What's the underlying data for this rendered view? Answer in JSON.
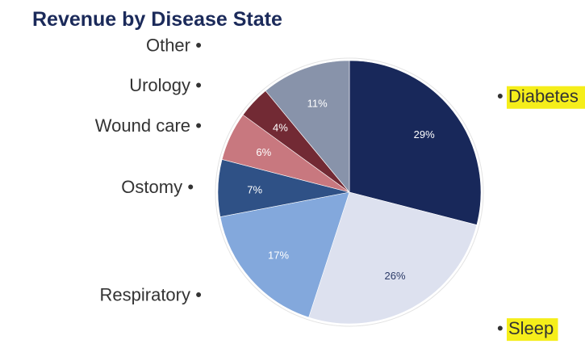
{
  "chart_data": {
    "type": "pie",
    "title": "Revenue by Disease State",
    "start_angle_deg": 0,
    "direction": "clockwise",
    "slices": [
      {
        "label": "Diabetes",
        "value": 29,
        "value_label": "29%",
        "color": "#18285a",
        "text_color": "#ffffff",
        "highlight": true
      },
      {
        "label": "Sleep",
        "value": 26,
        "value_label": "26%",
        "color": "#dde1ef",
        "text_color": "#2b3a67",
        "highlight": true
      },
      {
        "label": "Respiratory",
        "value": 17,
        "value_label": "17%",
        "color": "#83a8dc",
        "text_color": "#ffffff",
        "highlight": false
      },
      {
        "label": "Ostomy",
        "value": 7,
        "value_label": "7%",
        "color": "#2f5186",
        "text_color": "#ffffff",
        "highlight": false
      },
      {
        "label": "Wound care",
        "value": 6,
        "value_label": "6%",
        "color": "#c8787f",
        "text_color": "#ffffff",
        "highlight": false
      },
      {
        "label": "Urology",
        "value": 4,
        "value_label": "4%",
        "color": "#722a34",
        "text_color": "#ffffff",
        "highlight": false
      },
      {
        "label": "Other",
        "value": 11,
        "value_label": "11%",
        "color": "#8893aa",
        "text_color": "#ffffff",
        "highlight": false
      }
    ],
    "highlight_color": "#f5ee1a",
    "legend": "outside-labels"
  }
}
